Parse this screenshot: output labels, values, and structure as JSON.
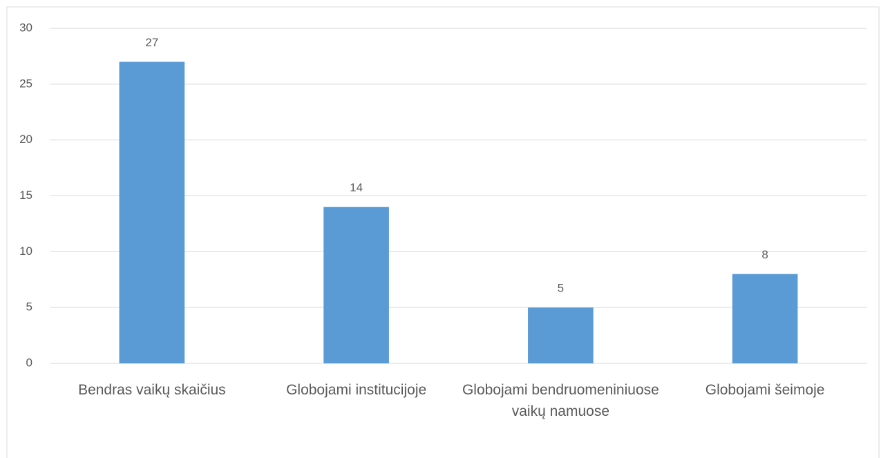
{
  "chart_data": {
    "type": "bar",
    "categories": [
      "Bendras vaikų skaičius",
      "Globojami institucijoje",
      "Globojami bendruomeniniuose vaikų namuose",
      "Globojami šeimoje"
    ],
    "values": [
      27,
      14,
      5,
      8
    ],
    "color": "#5b9bd5",
    "ylim": [
      0,
      30
    ],
    "yticks": [
      0,
      5,
      10,
      15,
      20,
      25,
      30
    ],
    "grid": true
  }
}
